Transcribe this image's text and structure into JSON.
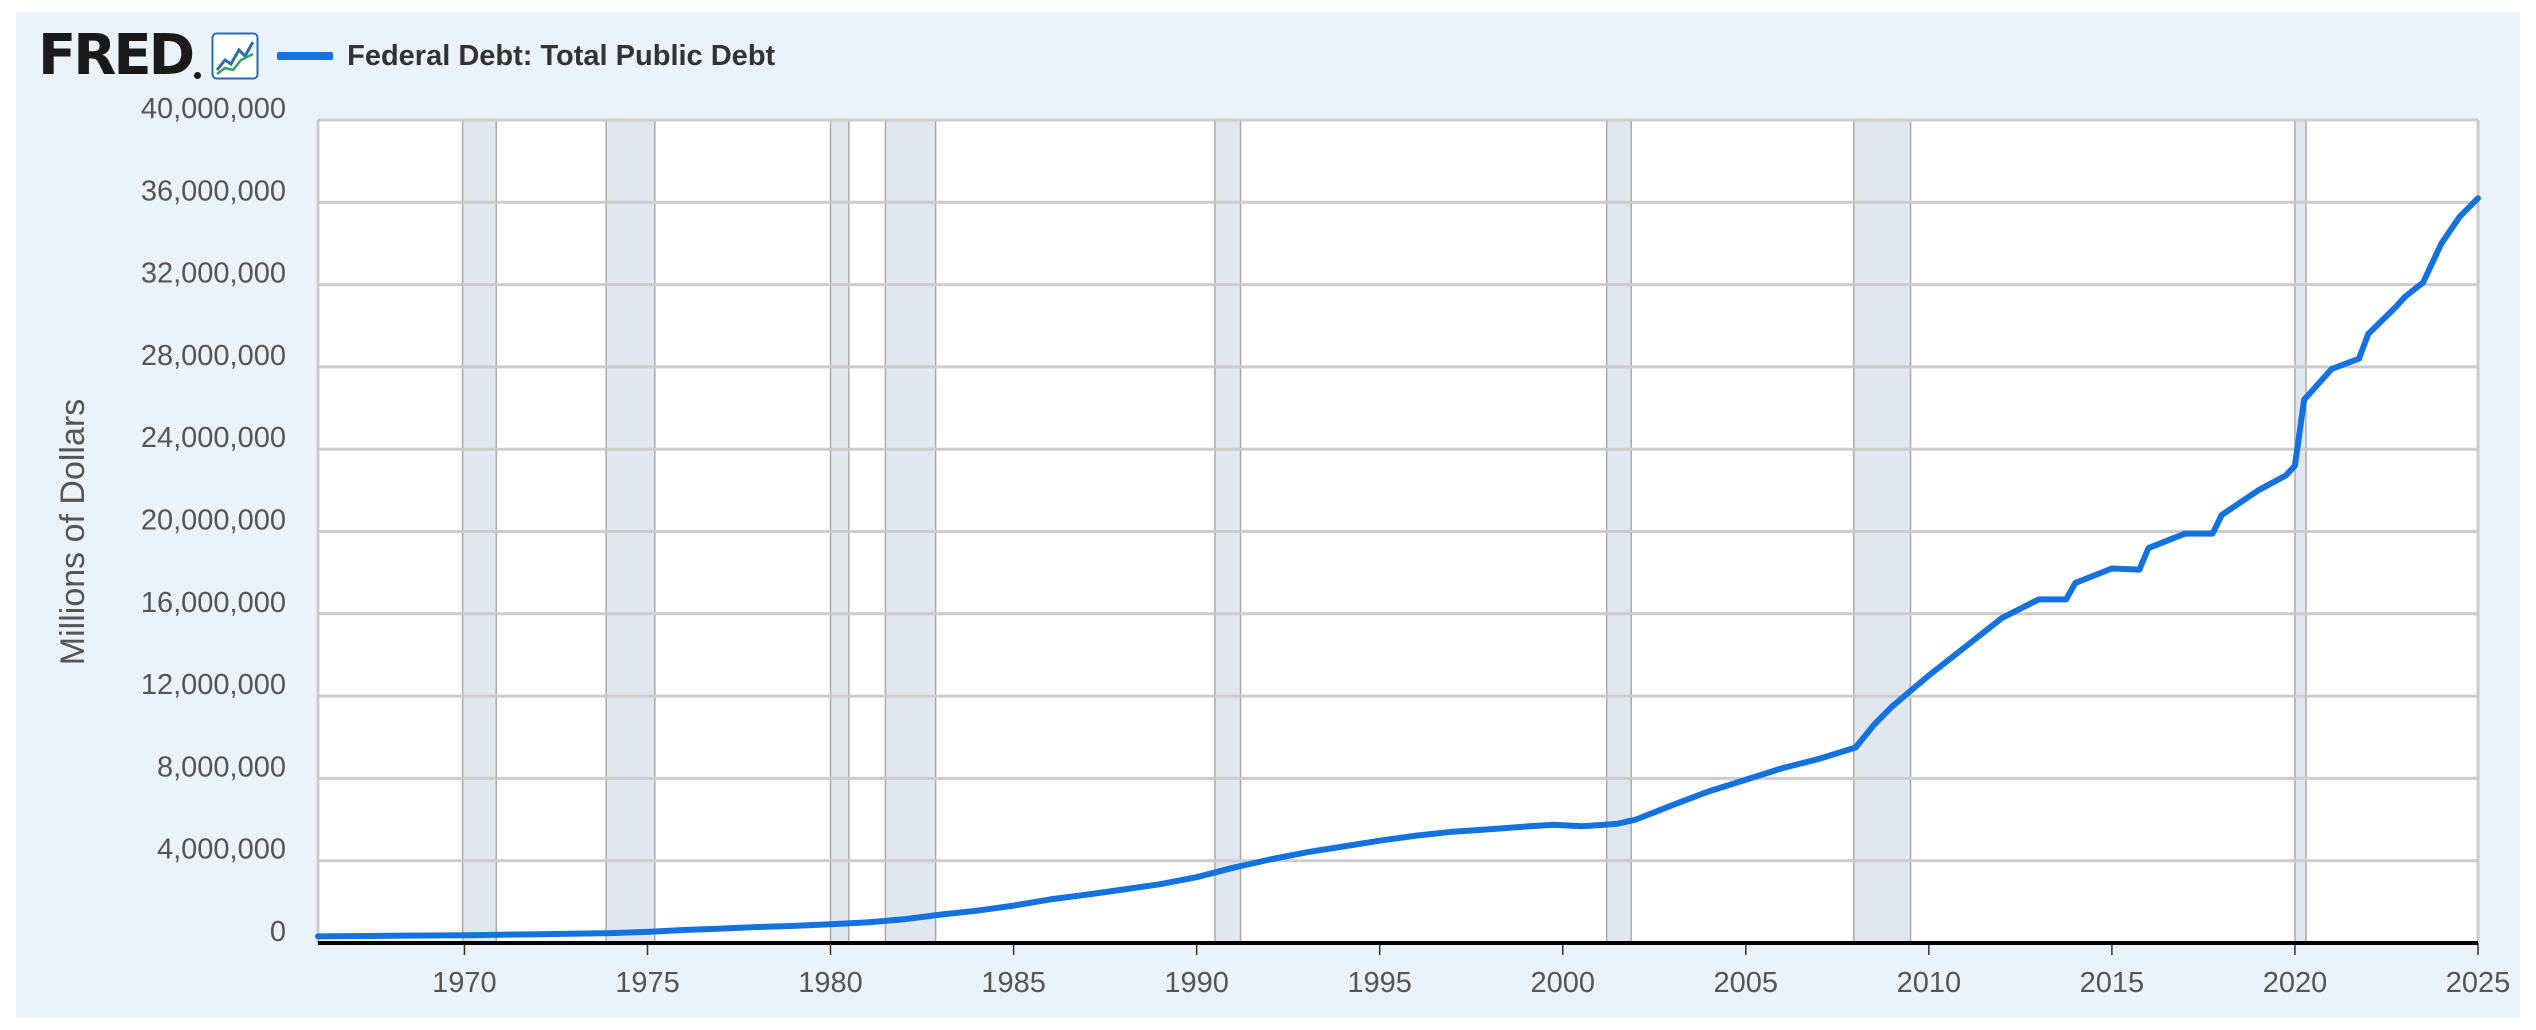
{
  "header": {
    "logo_text": "FRED",
    "logo_icon": "line-chart-icon",
    "legend_label": "Federal Debt: Total Public Debt",
    "legend_color": "#1472e0"
  },
  "chart_data": {
    "type": "line",
    "title": "",
    "xlabel": "",
    "ylabel": "Millions of Dollars",
    "xlim": [
      1966.0,
      2025.0
    ],
    "ylim": [
      0,
      40000000
    ],
    "x_ticks": [
      1970,
      1975,
      1980,
      1985,
      1990,
      1995,
      2000,
      2005,
      2010,
      2015,
      2020,
      2025
    ],
    "y_ticks": [
      0,
      4000000,
      8000000,
      12000000,
      16000000,
      20000000,
      24000000,
      28000000,
      32000000,
      36000000,
      40000000
    ],
    "y_tick_labels": [
      "0",
      "4,000,000",
      "8,000,000",
      "12,000,000",
      "16,000,000",
      "20,000,000",
      "24,000,000",
      "28,000,000",
      "32,000,000",
      "36,000,000",
      "40,000,000"
    ],
    "grid": true,
    "recessions": [
      [
        1969.95,
        1970.87
      ],
      [
        1973.87,
        1975.2
      ],
      [
        1980.0,
        1980.5
      ],
      [
        1981.5,
        1982.87
      ],
      [
        1990.5,
        1991.2
      ],
      [
        2001.2,
        2001.87
      ],
      [
        2007.95,
        2009.5
      ],
      [
        2020.0,
        2020.3
      ]
    ],
    "colors": {
      "line": "#1472e0",
      "recession": "#e1e7ef",
      "grid": "#cccccc",
      "axis": "#000000",
      "tick_label": "#555555"
    },
    "series": [
      {
        "name": "Federal Debt: Total Public Debt",
        "x": [
          1966.0,
          1968.0,
          1970.0,
          1972.0,
          1974.0,
          1975.0,
          1976.0,
          1977.0,
          1978.0,
          1979.0,
          1980.0,
          1981.0,
          1982.0,
          1983.0,
          1984.0,
          1985.0,
          1986.0,
          1987.0,
          1988.0,
          1989.0,
          1990.0,
          1991.0,
          1992.0,
          1993.0,
          1994.0,
          1995.0,
          1996.0,
          1997.0,
          1998.0,
          1999.0,
          1999.75,
          2000.5,
          2001.0,
          2001.5,
          2002.0,
          2003.0,
          2004.0,
          2005.0,
          2006.0,
          2007.0,
          2008.0,
          2008.5,
          2009.0,
          2010.0,
          2011.0,
          2012.0,
          2013.0,
          2013.75,
          2014.0,
          2015.0,
          2015.75,
          2016.0,
          2017.0,
          2017.75,
          2018.0,
          2019.0,
          2019.75,
          2020.0,
          2020.25,
          2020.5,
          2021.0,
          2021.75,
          2022.0,
          2022.75,
          2023.0,
          2023.5,
          2024.0,
          2024.5,
          2025.0
        ],
        "values": [
          320000,
          350000,
          380000,
          430000,
          480000,
          540000,
          630000,
          700000,
          780000,
          830000,
          910000,
          1000000,
          1150000,
          1380000,
          1570000,
          1820000,
          2120000,
          2350000,
          2600000,
          2860000,
          3200000,
          3660000,
          4060000,
          4410000,
          4690000,
          4970000,
          5220000,
          5410000,
          5530000,
          5660000,
          5750000,
          5670000,
          5730000,
          5800000,
          6000000,
          6700000,
          7380000,
          7930000,
          8500000,
          8950000,
          9500000,
          10600000,
          11500000,
          13000000,
          14400000,
          15800000,
          16700000,
          16700000,
          17500000,
          18200000,
          18150000,
          19200000,
          19900000,
          19900000,
          20800000,
          22000000,
          22720000,
          23200000,
          26400000,
          26900000,
          27900000,
          28400000,
          29600000,
          30900000,
          31400000,
          32100000,
          34000000,
          35300000,
          36200000
        ]
      }
    ]
  }
}
